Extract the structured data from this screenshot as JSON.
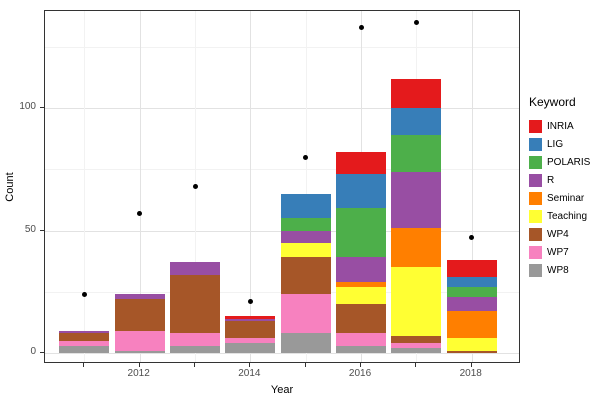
{
  "axes": {
    "x": {
      "label": "Year",
      "tick_labels": [
        "2012",
        "2014",
        "2016",
        "2018"
      ],
      "tick_years": [
        2012,
        2014,
        2016,
        2018
      ],
      "all_years": [
        2011,
        2012,
        2013,
        2014,
        2015,
        2016,
        2017,
        2018
      ]
    },
    "y": {
      "label": "Count",
      "tick_labels": [
        "0",
        "50",
        "100"
      ],
      "tick_values": [
        0,
        50,
        100
      ],
      "minor_tick_values": [
        25,
        75,
        125
      ],
      "limit": [
        0,
        140
      ]
    }
  },
  "legend": {
    "title": "Keyword",
    "position": "right",
    "items": [
      {
        "label": "INRIA",
        "color": "#e41a1c"
      },
      {
        "label": "LIG",
        "color": "#377eb8"
      },
      {
        "label": "POLARIS",
        "color": "#4daf4a"
      },
      {
        "label": "R",
        "color": "#984ea3"
      },
      {
        "label": "Seminar",
        "color": "#ff7f00"
      },
      {
        "label": "Teaching",
        "color": "#ffff33"
      },
      {
        "label": "WP4",
        "color": "#a65628"
      },
      {
        "label": "WP7",
        "color": "#f781bf"
      },
      {
        "label": "WP8",
        "color": "#999999"
      }
    ]
  },
  "chart_data": {
    "type": "bar",
    "stacked": true,
    "title": "",
    "xlabel": "Year",
    "ylabel": "Count",
    "ylim": [
      0,
      140
    ],
    "grid": true,
    "legend_position": "right",
    "categories": [
      2011,
      2012,
      2013,
      2014,
      2015,
      2016,
      2017,
      2018
    ],
    "stack_order_bottom_to_top": [
      "WP8",
      "WP7",
      "WP4",
      "Teaching",
      "Seminar",
      "R",
      "POLARIS",
      "LIG",
      "INRIA"
    ],
    "series": [
      {
        "name": "INRIA",
        "color": "#e41a1c",
        "values": [
          0,
          0,
          0,
          1,
          0,
          9,
          12,
          7
        ]
      },
      {
        "name": "LIG",
        "color": "#377eb8",
        "values": [
          0,
          0,
          0,
          0,
          10,
          14,
          11,
          4
        ]
      },
      {
        "name": "POLARIS",
        "color": "#4daf4a",
        "values": [
          0,
          0,
          0,
          0,
          5,
          20,
          15,
          4
        ]
      },
      {
        "name": "R",
        "color": "#984ea3",
        "values": [
          1,
          2,
          5,
          1,
          5,
          10,
          23,
          6
        ]
      },
      {
        "name": "Seminar",
        "color": "#ff7f00",
        "values": [
          0,
          0,
          0,
          0,
          0,
          2,
          16,
          11
        ]
      },
      {
        "name": "Teaching",
        "color": "#ffff33",
        "values": [
          0,
          0,
          0,
          0,
          6,
          7,
          28,
          5
        ]
      },
      {
        "name": "WP4",
        "color": "#a65628",
        "values": [
          3,
          13,
          24,
          7,
          15,
          12,
          3,
          1
        ]
      },
      {
        "name": "WP7",
        "color": "#f781bf",
        "values": [
          2,
          8,
          5,
          2,
          16,
          5,
          2,
          0
        ]
      },
      {
        "name": "WP8",
        "color": "#999999",
        "values": [
          3,
          1,
          3,
          4,
          8,
          3,
          2,
          0
        ]
      }
    ],
    "bar_totals": [
      9,
      24,
      37,
      15,
      65,
      82,
      112,
      38
    ],
    "point_series": {
      "name": "points",
      "marker": "filled-black-circle",
      "values": [
        24,
        57,
        68,
        21,
        80,
        133,
        135,
        47
      ]
    }
  }
}
